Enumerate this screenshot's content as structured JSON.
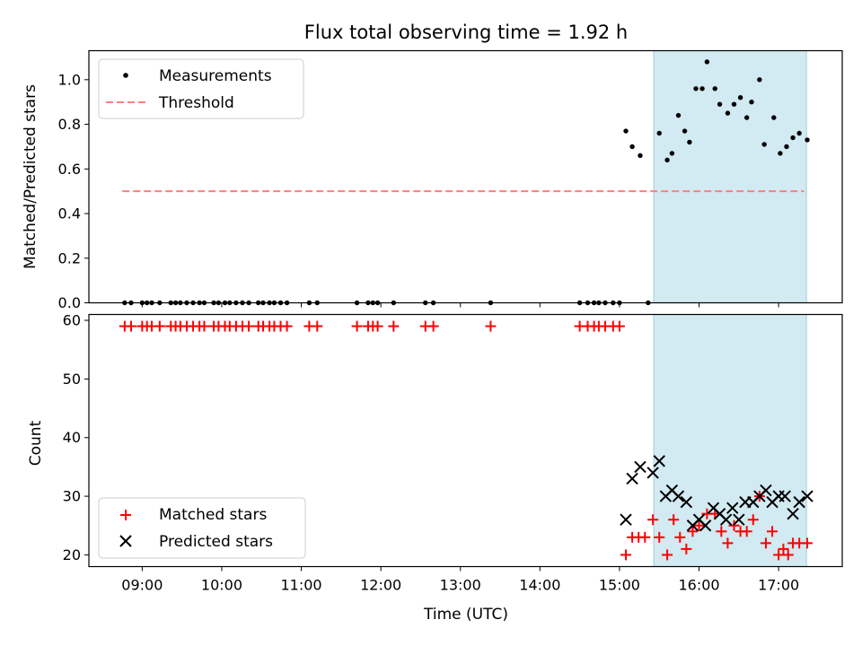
{
  "chart_data": [
    {
      "type": "scatter",
      "title": "Flux total observing time = 1.92 h",
      "xlabel": "",
      "ylabel": "Matched/Predicted stars",
      "xlim": [
        8.33,
        17.8
      ],
      "ylim": [
        0.0,
        1.13
      ],
      "yticks": [
        0.0,
        0.2,
        0.4,
        0.6,
        0.8,
        1.0
      ],
      "ytick_labels": [
        "0.0",
        "0.2",
        "0.4",
        "0.6",
        "0.8",
        "1.0"
      ],
      "xticks": [
        9,
        10,
        11,
        12,
        13,
        14,
        15,
        16,
        17
      ],
      "highlight_span": {
        "x0": 15.43,
        "x1": 17.35,
        "color": "#add8e6"
      },
      "threshold": {
        "name": "Threshold",
        "y": 0.5,
        "x0": 8.75,
        "x1": 17.32,
        "color": "#ff7f7f"
      },
      "legend": [
        {
          "label": "Measurements",
          "marker": "dot",
          "color": "#000000"
        },
        {
          "label": "Threshold",
          "marker": "dash",
          "color": "#ff7f7f"
        }
      ],
      "legend_position": "upper left",
      "series": [
        {
          "name": "Measurements",
          "x": [
            8.78,
            8.86,
            9.0,
            9.06,
            9.12,
            9.22,
            9.36,
            9.42,
            9.48,
            9.56,
            9.64,
            9.72,
            9.78,
            9.9,
            9.96,
            10.04,
            10.1,
            10.18,
            10.26,
            10.34,
            10.46,
            10.52,
            10.6,
            10.66,
            10.74,
            10.82,
            11.1,
            11.2,
            11.7,
            11.84,
            11.9,
            11.96,
            12.16,
            12.56,
            12.66,
            13.38,
            14.5,
            14.6,
            14.68,
            14.74,
            14.82,
            14.92,
            15.0,
            15.36,
            15.08,
            15.16,
            15.26,
            15.5,
            15.6,
            15.66,
            15.74,
            15.82,
            15.88,
            15.96,
            16.04,
            16.1,
            16.2,
            16.26,
            16.36,
            16.44,
            16.52,
            16.6,
            16.66,
            16.76,
            16.82,
            16.94,
            17.02,
            17.1,
            17.18,
            17.26,
            17.36
          ],
          "y": [
            0.0,
            0.0,
            0.0,
            0.0,
            0.0,
            0.0,
            0.0,
            0.0,
            0.0,
            0.0,
            0.0,
            0.0,
            0.0,
            0.0,
            0.0,
            0.0,
            0.0,
            0.0,
            0.0,
            0.0,
            0.0,
            0.0,
            0.0,
            0.0,
            0.0,
            0.0,
            0.0,
            0.0,
            0.0,
            0.0,
            0.0,
            0.0,
            0.0,
            0.0,
            0.0,
            0.0,
            0.0,
            0.0,
            0.0,
            0.0,
            0.0,
            0.0,
            0.0,
            0.0,
            0.77,
            0.7,
            0.66,
            0.76,
            0.64,
            0.67,
            0.84,
            0.77,
            0.72,
            0.96,
            0.96,
            1.08,
            0.96,
            0.89,
            0.85,
            0.89,
            0.92,
            0.83,
            0.9,
            1.0,
            0.71,
            0.83,
            0.67,
            0.7,
            0.74,
            0.76,
            0.73
          ]
        }
      ]
    },
    {
      "type": "scatter",
      "title": "",
      "xlabel": "Time (UTC)",
      "ylabel": "Count",
      "xlim": [
        8.33,
        17.8
      ],
      "ylim": [
        18.0,
        61.0
      ],
      "yticks": [
        20,
        30,
        40,
        50,
        60
      ],
      "ytick_labels": [
        "20",
        "30",
        "40",
        "50",
        "60"
      ],
      "xticks": [
        9,
        10,
        11,
        12,
        13,
        14,
        15,
        16,
        17
      ],
      "xtick_labels": [
        "09:00",
        "10:00",
        "11:00",
        "12:00",
        "13:00",
        "14:00",
        "15:00",
        "16:00",
        "17:00"
      ],
      "highlight_span": {
        "x0": 15.43,
        "x1": 17.35,
        "color": "#add8e6"
      },
      "legend": [
        {
          "label": "Matched stars",
          "marker": "plus",
          "color": "#ff0000"
        },
        {
          "label": "Predicted stars",
          "marker": "x",
          "color": "#000000"
        }
      ],
      "legend_position": "lower left",
      "series": [
        {
          "name": "Matched stars",
          "x": [
            8.78,
            8.86,
            9.0,
            9.06,
            9.12,
            9.22,
            9.36,
            9.42,
            9.48,
            9.56,
            9.64,
            9.72,
            9.78,
            9.9,
            9.96,
            10.04,
            10.1,
            10.18,
            10.26,
            10.34,
            10.46,
            10.52,
            10.6,
            10.66,
            10.74,
            10.82,
            11.1,
            11.2,
            11.7,
            11.84,
            11.9,
            11.96,
            12.16,
            12.56,
            12.66,
            13.38,
            14.5,
            14.6,
            14.68,
            14.74,
            14.82,
            14.92,
            15.0,
            15.08,
            15.16,
            15.24,
            15.32,
            15.42,
            15.5,
            15.6,
            15.68,
            15.76,
            15.84,
            15.92,
            16.0,
            16.1,
            16.2,
            16.28,
            16.36,
            16.44,
            16.52,
            16.6,
            16.68,
            16.76,
            16.84,
            16.92,
            17.0,
            17.06,
            17.12,
            17.18,
            17.26,
            17.36
          ],
          "y": [
            59,
            59,
            59,
            59,
            59,
            59,
            59,
            59,
            59,
            59,
            59,
            59,
            59,
            59,
            59,
            59,
            59,
            59,
            59,
            59,
            59,
            59,
            59,
            59,
            59,
            59,
            59,
            59,
            59,
            59,
            59,
            59,
            59,
            59,
            59,
            59,
            59,
            59,
            59,
            59,
            59,
            59,
            59,
            20,
            23,
            23,
            23,
            26,
            23,
            20,
            26,
            23,
            21,
            24,
            25,
            27,
            27,
            24,
            22,
            25,
            24,
            24,
            26,
            30,
            22,
            24,
            20,
            21,
            20,
            22,
            22,
            22
          ]
        },
        {
          "name": "Predicted stars",
          "x": [
            15.08,
            15.16,
            15.26,
            15.42,
            15.5,
            15.58,
            15.66,
            15.74,
            15.84,
            15.92,
            16.0,
            16.08,
            16.18,
            16.26,
            16.34,
            16.42,
            16.5,
            16.58,
            16.68,
            16.76,
            16.84,
            16.92,
            17.0,
            17.08,
            17.18,
            17.26,
            17.36
          ],
          "y": [
            26,
            33,
            35,
            34,
            36,
            30,
            31,
            30,
            29,
            25,
            26,
            25,
            28,
            27,
            26,
            28,
            26,
            29,
            29,
            30,
            31,
            29,
            30,
            30,
            27,
            29,
            30
          ]
        }
      ]
    }
  ]
}
